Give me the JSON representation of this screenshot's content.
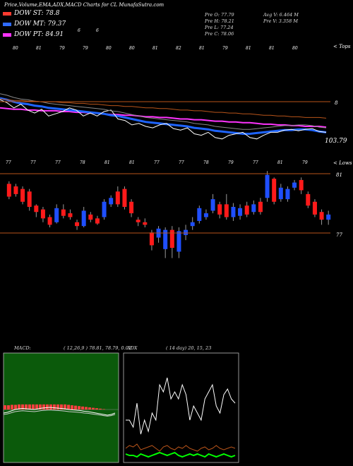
{
  "header": {
    "title": "Price,Volume,EMA,ADX,MACD Charts for CL MunafaSutra.com"
  },
  "dow": [
    {
      "label": "DOW ST: 78.8",
      "color": "#ff3b30"
    },
    {
      "label": "DOW MT: 79.37",
      "color": "#2f6bff"
    },
    {
      "label": "DOW PT: 84.91",
      "color": "#ff33ff"
    }
  ],
  "info": {
    "pre_o": "Pre O: 77.79",
    "pre_h": "Pre H: 78.21",
    "pre_l": "Pre L: 77.24",
    "pre_c": "Pre C: 78.06",
    "avg_v": "Avg V: 6.464 M",
    "pre_v": "Pre V: 3.358 M"
  },
  "main_chart": {
    "right_top": "< Tops",
    "right_low": "< Lows",
    "last_price": "103.79",
    "level_mark": "8",
    "level_81": "81",
    "level_77": "77",
    "top_labels": [
      "80",
      "81",
      "79",
      "79",
      "80",
      "80",
      "81",
      "82",
      "81",
      "79",
      "81",
      "81",
      "80"
    ],
    "low_labels": [
      "77",
      "77",
      "77",
      "78",
      "81",
      "81",
      "77",
      "77",
      "78",
      "79",
      "77",
      "81",
      "79"
    ],
    "mid_labels": [
      "6",
      "6"
    ],
    "colors": {
      "ema_magenta": "#ff33ff",
      "ema_blue": "#1e64ff",
      "price": "#ffffff",
      "grey": "#888888",
      "orange": "#b8541a",
      "up": "#1f4fff",
      "down": "#ff1a1a"
    }
  },
  "macd": {
    "label": "MACD:",
    "params": "( 12,26,9 ) 78.81, 78.79, 0.02",
    "bg": "#0b5a0b"
  },
  "adx": {
    "label": "ADX",
    "params": "( 14 day) 20, 15, 23"
  },
  "chart_data": [
    {
      "type": "candlestick",
      "title": "Price,Volume,EMA,ADX,MACD Charts for CL MunafaSutra.com",
      "candles": [
        {
          "o": 79.6,
          "c": 80.6,
          "h": 80.8,
          "l": 79.4,
          "dir": "down"
        },
        {
          "o": 80.4,
          "c": 79.8,
          "h": 80.6,
          "l": 79.6,
          "dir": "down"
        },
        {
          "o": 80.2,
          "c": 79.2,
          "h": 80.4,
          "l": 79.0,
          "dir": "down"
        },
        {
          "o": 80.0,
          "c": 78.8,
          "h": 80.2,
          "l": 78.5,
          "dir": "down"
        },
        {
          "o": 78.9,
          "c": 78.4,
          "h": 79.0,
          "l": 78.0,
          "dir": "down"
        },
        {
          "o": 78.6,
          "c": 77.9,
          "h": 78.8,
          "l": 77.6,
          "dir": "down"
        },
        {
          "o": 78.0,
          "c": 77.4,
          "h": 78.2,
          "l": 77.2,
          "dir": "down"
        },
        {
          "o": 77.6,
          "c": 78.7,
          "h": 79.0,
          "l": 77.5,
          "dir": "up"
        },
        {
          "o": 78.6,
          "c": 78.1,
          "h": 79.0,
          "l": 77.9,
          "dir": "down"
        },
        {
          "o": 78.3,
          "c": 78.0,
          "h": 78.6,
          "l": 77.8,
          "dir": "down"
        },
        {
          "o": 77.6,
          "c": 77.3,
          "h": 77.8,
          "l": 77.0,
          "dir": "down"
        },
        {
          "o": 77.3,
          "c": 78.5,
          "h": 78.8,
          "l": 77.2,
          "dir": "up"
        },
        {
          "o": 78.2,
          "c": 77.8,
          "h": 78.4,
          "l": 77.6,
          "dir": "down"
        },
        {
          "o": 77.9,
          "c": 77.5,
          "h": 78.1,
          "l": 77.4,
          "dir": "down"
        },
        {
          "o": 78.0,
          "c": 79.2,
          "h": 79.4,
          "l": 77.8,
          "dir": "up"
        },
        {
          "o": 79.0,
          "c": 79.5,
          "h": 79.7,
          "l": 78.8,
          "dir": "up"
        },
        {
          "o": 79.0,
          "c": 80.0,
          "h": 80.4,
          "l": 78.8,
          "dir": "down"
        },
        {
          "o": 80.2,
          "c": 78.8,
          "h": 80.4,
          "l": 78.6,
          "dir": "down"
        },
        {
          "o": 79.2,
          "c": 78.3,
          "h": 79.4,
          "l": 78.0,
          "dir": "down"
        },
        {
          "o": 77.8,
          "c": 77.6,
          "h": 78.0,
          "l": 77.3,
          "dir": "down"
        },
        {
          "o": 77.6,
          "c": 77.4,
          "h": 77.9,
          "l": 77.2,
          "dir": "down"
        },
        {
          "o": 75.8,
          "c": 76.8,
          "h": 77.0,
          "l": 75.4,
          "dir": "down"
        },
        {
          "o": 76.4,
          "c": 77.1,
          "h": 77.3,
          "l": 76.0,
          "dir": "up"
        },
        {
          "o": 75.5,
          "c": 77.0,
          "h": 77.2,
          "l": 74.8,
          "dir": "up"
        },
        {
          "o": 75.6,
          "c": 77.0,
          "h": 77.3,
          "l": 74.8,
          "dir": "down"
        },
        {
          "o": 75.3,
          "c": 76.9,
          "h": 77.2,
          "l": 74.8,
          "dir": "up"
        },
        {
          "o": 76.6,
          "c": 77.0,
          "h": 77.4,
          "l": 76.2,
          "dir": "up"
        },
        {
          "o": 77.3,
          "c": 77.6,
          "h": 78.0,
          "l": 77.0,
          "dir": "up"
        },
        {
          "o": 77.7,
          "c": 78.7,
          "h": 78.9,
          "l": 77.5,
          "dir": "up"
        },
        {
          "o": 78.3,
          "c": 78.0,
          "h": 78.6,
          "l": 77.8,
          "dir": "up"
        },
        {
          "o": 78.5,
          "c": 79.4,
          "h": 79.8,
          "l": 78.3,
          "dir": "up"
        },
        {
          "o": 79.0,
          "c": 78.2,
          "h": 79.2,
          "l": 77.9,
          "dir": "down"
        },
        {
          "o": 78.0,
          "c": 79.0,
          "h": 79.8,
          "l": 77.8,
          "dir": "down"
        },
        {
          "o": 78.0,
          "c": 78.8,
          "h": 79.1,
          "l": 77.7,
          "dir": "up"
        },
        {
          "o": 78.7,
          "c": 78.1,
          "h": 79.0,
          "l": 77.8,
          "dir": "up"
        },
        {
          "o": 78.2,
          "c": 78.9,
          "h": 79.2,
          "l": 78.0,
          "dir": "down"
        },
        {
          "o": 78.4,
          "c": 79.0,
          "h": 79.3,
          "l": 78.2,
          "dir": "up"
        },
        {
          "o": 78.4,
          "c": 79.2,
          "h": 79.5,
          "l": 78.2,
          "dir": "down"
        },
        {
          "o": 79.5,
          "c": 81.3,
          "h": 81.6,
          "l": 79.2,
          "dir": "up"
        },
        {
          "o": 81.0,
          "c": 79.2,
          "h": 81.1,
          "l": 79.0,
          "dir": "down"
        },
        {
          "o": 79.4,
          "c": 80.3,
          "h": 80.6,
          "l": 79.2,
          "dir": "up"
        },
        {
          "o": 80.2,
          "c": 79.4,
          "h": 80.4,
          "l": 79.2,
          "dir": "up"
        },
        {
          "o": 80.3,
          "c": 80.7,
          "h": 80.9,
          "l": 80.1,
          "dir": "up"
        },
        {
          "o": 80.9,
          "c": 80.1,
          "h": 81.1,
          "l": 79.8,
          "dir": "down"
        },
        {
          "o": 79.8,
          "c": 78.9,
          "h": 80.0,
          "l": 78.7,
          "dir": "down"
        },
        {
          "o": 79.2,
          "c": 78.2,
          "h": 79.4,
          "l": 78.0,
          "dir": "down"
        },
        {
          "o": 78.4,
          "c": 77.8,
          "h": 78.6,
          "l": 77.4,
          "dir": "down"
        },
        {
          "o": 77.8,
          "c": 78.2,
          "h": 78.5,
          "l": 77.4,
          "dir": "up"
        }
      ],
      "levels": [
        81,
        77
      ]
    },
    {
      "type": "line",
      "series": [
        {
          "values": [
            0.55,
            0.56,
            0.57,
            0.57,
            0.58,
            0.58,
            0.59,
            0.59,
            0.59,
            0.6,
            0.6,
            0.61,
            0.61,
            0.62,
            0.62,
            0.63,
            0.64,
            0.64,
            0.65,
            0.65,
            0.66,
            0.67,
            0.67,
            0.68,
            0.68,
            0.69,
            0.7,
            0.7,
            0.71,
            0.71,
            0.72,
            0.73,
            0.73,
            0.74,
            0.74,
            0.75,
            0.75,
            0.76,
            0.77,
            0.77,
            0.78,
            0.78,
            0.79,
            0.79,
            0.8,
            0.8,
            0.8,
            0.81
          ],
          "color": "#ff33ff"
        },
        {
          "values": [
            0.42,
            0.44,
            0.47,
            0.49,
            0.5,
            0.52,
            0.53,
            0.55,
            0.56,
            0.57,
            0.58,
            0.59,
            0.6,
            0.61,
            0.62,
            0.63,
            0.65,
            0.66,
            0.68,
            0.7,
            0.72,
            0.74,
            0.75,
            0.76,
            0.77,
            0.78,
            0.79,
            0.8,
            0.82,
            0.83,
            0.84,
            0.86,
            0.87,
            0.88,
            0.89,
            0.9,
            0.9,
            0.89,
            0.88,
            0.87,
            0.86,
            0.85,
            0.85,
            0.84,
            0.84,
            0.85,
            0.87,
            0.88
          ],
          "color": "#1e64ff"
        },
        {
          "values": [
            0.44,
            0.48,
            0.55,
            0.5,
            0.58,
            0.62,
            0.57,
            0.66,
            0.63,
            0.6,
            0.55,
            0.58,
            0.66,
            0.62,
            0.66,
            0.6,
            0.58,
            0.7,
            0.72,
            0.78,
            0.76,
            0.8,
            0.82,
            0.78,
            0.76,
            0.83,
            0.85,
            0.82,
            0.9,
            0.92,
            0.88,
            0.95,
            0.97,
            0.92,
            0.9,
            0.88,
            0.95,
            0.97,
            0.92,
            0.88,
            0.88,
            0.85,
            0.84,
            0.86,
            0.84,
            0.83,
            0.87,
            0.88
          ],
          "color": "#ffffff"
        }
      ]
    },
    {
      "type": "area",
      "title": "MACD",
      "series": [
        {
          "name": "histogram",
          "values": [
            0.5,
            0.5,
            0.55,
            0.55,
            0.6,
            0.6,
            0.6,
            0.6,
            0.6,
            0.6,
            0.6,
            0.6,
            0.6,
            0.6,
            0.6,
            0.6,
            0.6,
            0.6,
            0.55,
            0.5,
            0.45,
            0.4,
            0.35,
            0.3,
            0.25,
            0.2,
            0.15,
            0.1,
            0.05,
            0.0
          ],
          "color": "#ff4040"
        },
        {
          "name": "macd",
          "values": [
            0.0,
            0.1,
            0.3,
            0.5,
            0.6,
            0.65,
            0.6,
            0.55,
            0.5,
            0.6,
            0.7,
            0.75,
            0.8,
            0.75,
            0.7,
            0.65,
            0.6,
            0.5,
            0.45,
            0.4,
            0.35,
            0.25,
            0.2,
            0.1,
            0.0,
            -0.1,
            -0.2,
            -0.3,
            -0.2,
            0.0
          ],
          "color": "#ffffff"
        }
      ]
    },
    {
      "type": "line",
      "title": "ADX",
      "series": [
        {
          "name": "adx",
          "values": [
            0.3,
            0.3,
            0.25,
            0.42,
            0.2,
            0.3,
            0.22,
            0.35,
            0.3,
            0.55,
            0.5,
            0.6,
            0.45,
            0.5,
            0.45,
            0.55,
            0.48,
            0.3,
            0.4,
            0.35,
            0.3,
            0.45,
            0.5,
            0.55,
            0.4,
            0.35,
            0.48,
            0.52,
            0.45,
            0.42
          ],
          "color": "#ffffff"
        },
        {
          "name": "+di",
          "values": [
            0.1,
            0.12,
            0.11,
            0.13,
            0.09,
            0.1,
            0.11,
            0.12,
            0.1,
            0.08,
            0.11,
            0.12,
            0.1,
            0.09,
            0.11,
            0.1,
            0.12,
            0.1,
            0.09,
            0.08,
            0.1,
            0.11,
            0.09,
            0.1,
            0.12,
            0.1,
            0.09,
            0.1,
            0.11,
            0.1
          ],
          "color": "#b8541a"
        },
        {
          "name": "-di",
          "values": [
            0.06,
            0.05,
            0.05,
            0.04,
            0.06,
            0.05,
            0.04,
            0.05,
            0.06,
            0.07,
            0.06,
            0.05,
            0.06,
            0.07,
            0.05,
            0.04,
            0.05,
            0.06,
            0.05,
            0.06,
            0.05,
            0.04,
            0.06,
            0.05,
            0.04,
            0.05,
            0.06,
            0.05,
            0.04,
            0.05
          ],
          "color": "#00ff00"
        }
      ]
    }
  ]
}
